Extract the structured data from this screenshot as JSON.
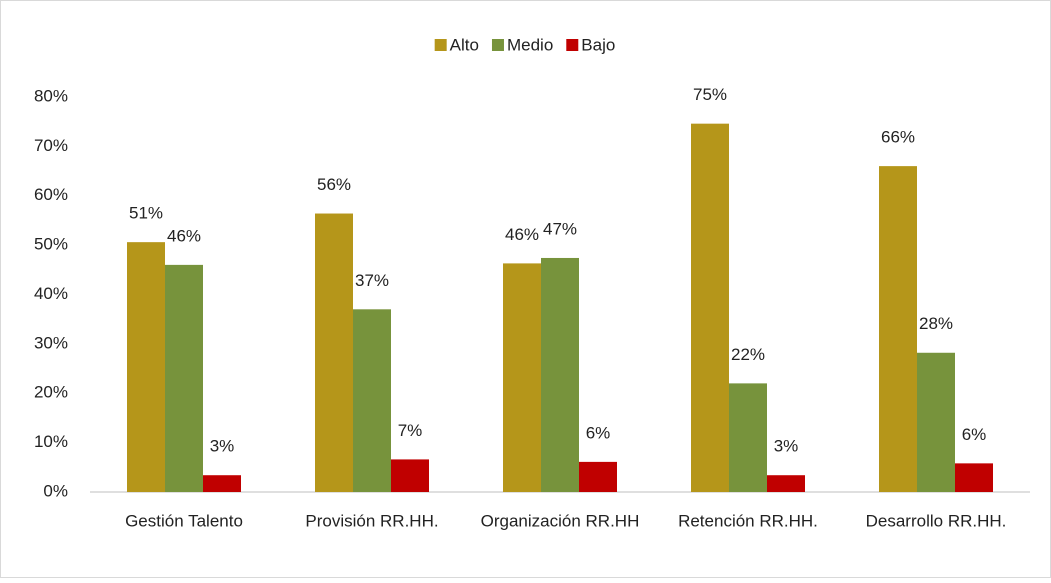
{
  "chart_data": {
    "type": "bar",
    "categories": [
      "Gestión Talento",
      "Provisión RR.HH.",
      "Organización RR.HH",
      "Retención RR.HH.",
      "Desarrollo RR.HH."
    ],
    "series": [
      {
        "name": "Alto",
        "color": "#b5961a",
        "values": [
          50.6,
          56.4,
          46.3,
          74.6,
          66
        ],
        "value_labels": [
          "51%",
          "56%",
          "46%",
          "75%",
          "66%"
        ]
      },
      {
        "name": "Medio",
        "color": "#77933c",
        "values": [
          46,
          37,
          47.4,
          22,
          28.2
        ],
        "value_labels": [
          "46%",
          "37%",
          "47%",
          "22%",
          "28%"
        ]
      },
      {
        "name": "Bajo",
        "color": "#c00000",
        "values": [
          3.4,
          6.6,
          6.1,
          3.4,
          5.8
        ],
        "value_labels": [
          "3%",
          "7%",
          "6%",
          "3%",
          "6%"
        ]
      }
    ],
    "ylim": [
      0,
      80
    ],
    "yticks": [
      {
        "value": 0,
        "label": "0%"
      },
      {
        "value": 10,
        "label": "10%"
      },
      {
        "value": 20,
        "label": "20%"
      },
      {
        "value": 30,
        "label": "30%"
      },
      {
        "value": 40,
        "label": "40%"
      },
      {
        "value": 50,
        "label": "50%"
      },
      {
        "value": 60,
        "label": "60%"
      },
      {
        "value": 70,
        "label": "70%"
      },
      {
        "value": 80,
        "label": "80%"
      }
    ],
    "grid": false,
    "legend": "top"
  }
}
